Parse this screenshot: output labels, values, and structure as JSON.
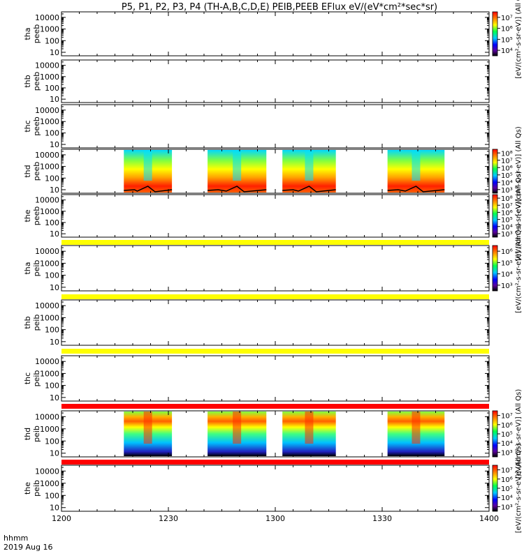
{
  "chart_data": {
    "type": "heatmap",
    "title": "P5, P1, P2, P3, P4 (TH-A,B,C,D,E) PEIB,PEEB EFlux eV/(eV*cm²*sec*sr)",
    "x_unit_label": "hhmm",
    "date_label": "2019 Aug 16",
    "x_ticks": [
      "1200",
      "1230",
      "1300",
      "1330",
      "1400"
    ],
    "x_range_minutes": [
      0,
      120
    ],
    "y_scale": "log",
    "y_ticks": [
      "10",
      "100",
      "1000",
      "10000"
    ],
    "panels": [
      {
        "probe": "tha",
        "inst": "peeb",
        "colorbar": {
          "labels": [
            "10⁴",
            "10⁵",
            "10⁶",
            "10⁷"
          ],
          "title": "[eV/(cm²-s-sr-eV)] (All Qs)"
        },
        "blocks": []
      },
      {
        "probe": "thb",
        "inst": "peeb",
        "colorbar": null,
        "blocks": []
      },
      {
        "probe": "thc",
        "inst": "peeb",
        "colorbar": null,
        "blocks": []
      },
      {
        "probe": "thd",
        "inst": "peeb",
        "colorbar": {
          "labels": [
            "10³",
            "10⁴",
            "10⁵",
            "10⁶",
            "10⁷",
            "10⁸"
          ],
          "title": "[eV/(cm²-s-sr-eV)] (All Qs)"
        },
        "blocks": [
          [
            17.5,
            31
          ],
          [
            41,
            57.5
          ],
          [
            62,
            77
          ],
          [
            91.5,
            107.5
          ]
        ]
      },
      {
        "probe": "the",
        "inst": "peeb",
        "colorbar": {
          "labels": [
            "10³",
            "10⁴",
            "10⁵",
            "10⁶",
            "10⁷",
            "10⁸"
          ],
          "title": "[eV/(cm²-s-sr-eV)] (All Qs)"
        },
        "blocks": []
      },
      {
        "probe": "tha",
        "inst": "peib",
        "colorbar": {
          "labels": [
            "10³",
            "10⁴",
            "10⁵",
            "10⁶"
          ],
          "title": "[eV/(cm²-s-sr-eV)] (All Qs)"
        },
        "blocks": []
      },
      {
        "probe": "thb",
        "inst": "peib",
        "colorbar": null,
        "blocks": []
      },
      {
        "probe": "thc",
        "inst": "peib",
        "colorbar": null,
        "blocks": []
      },
      {
        "probe": "thd",
        "inst": "peib",
        "colorbar": {
          "labels": [
            "10³",
            "10⁴",
            "10⁵",
            "10⁶",
            "10⁷"
          ],
          "title": "[eV/(cm²-s-sr-eV)] (All Qs)"
        },
        "blocks": [
          [
            17.5,
            31
          ],
          [
            41,
            57.5
          ],
          [
            62,
            77
          ],
          [
            91.5,
            107.5
          ]
        ]
      },
      {
        "probe": "the",
        "inst": "peib",
        "colorbar": {
          "labels": [
            "10³",
            "10⁴",
            "10⁵",
            "10⁶",
            "10⁷"
          ],
          "title": "[eV/(cm²-s-sr-eV)] (All Qs)"
        },
        "blocks": []
      }
    ],
    "colors": {
      "yellow_band": "#ffff00",
      "red_band": "#ff0000"
    }
  }
}
